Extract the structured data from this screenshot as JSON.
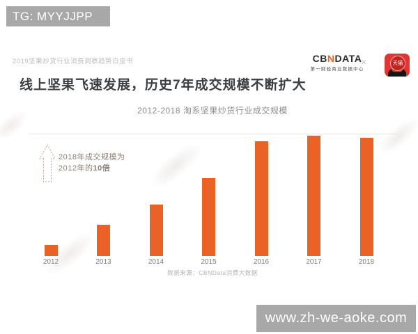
{
  "overlays": {
    "tg_banner": "TG: MYYJJPP",
    "site_banner": "www.zh-we-aoke.com"
  },
  "header": {
    "report_label": "2019坚果炒货行业消费洞察趋势白皮书",
    "logo": {
      "cbn_cb": "CB",
      "cbn_n": "N",
      "cbn_data": "DATA",
      "cbn_sub": "第一财经商业数据中心",
      "separator": "×",
      "tmall_label": "天猫"
    }
  },
  "main": {
    "title": "线上坚果飞速发展，历史7年成交规模不断扩大",
    "annotation": {
      "line1": "2018年成交规模为",
      "line2_prefix": "2012年的",
      "line2_bold": "10倍"
    }
  },
  "chart_data": {
    "type": "bar",
    "title": "2012-2018 淘系坚果炒货行业成交规模",
    "categories": [
      "2012",
      "2013",
      "2014",
      "2015",
      "2016",
      "2017",
      "2018"
    ],
    "values": [
      1,
      2.7,
      4.5,
      6.8,
      10.0,
      10.5,
      10.3
    ],
    "value_basis": "relative index, 2012 = 1",
    "ylim": [
      0,
      10.6
    ],
    "grid": false,
    "legend": "none",
    "bar_color": "#eb6226",
    "annotation": "2018年成交规模为2012年的10倍",
    "source": "数据来源：CBNData消费大数据"
  },
  "colors": {
    "bar_orange": "#eb6226",
    "banner_gray": "#a8a8a8",
    "title_dark": "#3a3d42",
    "tmall_red": "#e23430",
    "arrow_outline": "#c9a18b"
  }
}
